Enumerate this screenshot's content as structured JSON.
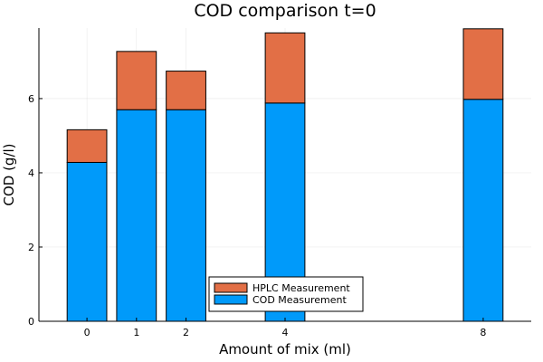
{
  "chart_data": {
    "type": "bar",
    "stacked": true,
    "title": "COD comparison t=0",
    "xlabel": "Amount of mix (ml)",
    "ylabel": "COD (g/l)",
    "x": [
      0,
      1,
      2,
      4,
      8
    ],
    "x_tick_labels": [
      "0",
      "1",
      "2",
      "4",
      "8"
    ],
    "xlim": [
      -0.97,
      8.97
    ],
    "ylim": [
      0,
      7.9
    ],
    "y_ticks": [
      0,
      2,
      4,
      6
    ],
    "y_tick_labels": [
      "0",
      "2",
      "4",
      "6"
    ],
    "grid": true,
    "legend_position": "bottom-center",
    "series": [
      {
        "name": "COD Measurement",
        "color": "#009AFA",
        "values": [
          4.28,
          5.7,
          5.7,
          5.88,
          5.98
        ]
      },
      {
        "name": "HPLC Measurement",
        "color": "#E26F46",
        "values": [
          0.88,
          1.57,
          1.04,
          1.89,
          1.9
        ]
      }
    ],
    "legend_order": [
      "HPLC Measurement",
      "COD Measurement"
    ]
  }
}
